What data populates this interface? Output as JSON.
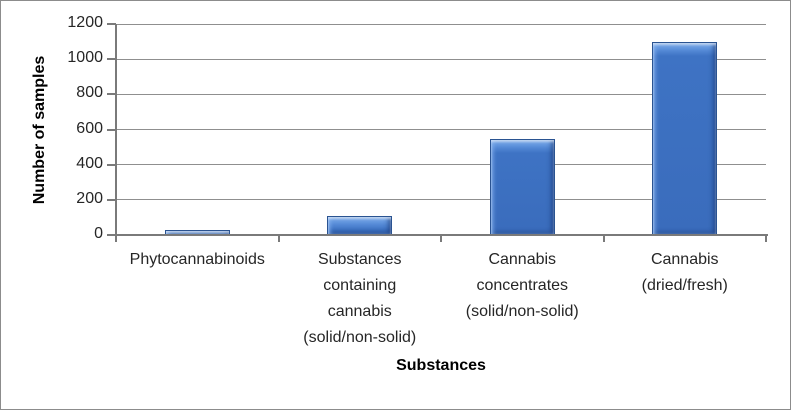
{
  "chart_data": {
    "type": "bar",
    "categories": [
      "Phytocannabinoids",
      "Substances containing cannabis (solid/non-solid)",
      "Cannabis concentrates (solid/non-solid)",
      "Cannabis (dried/fresh)"
    ],
    "category_lines": [
      [
        "Phytocannabinoids"
      ],
      [
        "Substances",
        "containing",
        "cannabis",
        "(solid/non-solid)"
      ],
      [
        "Cannabis",
        "concentrates",
        "(solid/non-solid)"
      ],
      [
        "Cannabis",
        "(dried/fresh)"
      ]
    ],
    "values": [
      30,
      110,
      545,
      1095
    ],
    "xlabel": "Substances",
    "ylabel": "Number of samples",
    "ylim": [
      0,
      1200
    ],
    "yticks": [
      0,
      200,
      400,
      600,
      800,
      1000,
      1200
    ],
    "grid": true,
    "legend_position": "none",
    "bar_color": "#3A6CBC",
    "bar_highlight_color": "#7FB0EF",
    "bar_edge_color": "#2A5391",
    "gridline_color": "#8F8F8F",
    "axis_color": "#7A7A7A",
    "tick_text_color": "#262626",
    "title_text_color": "#000000",
    "figure_border_color": "#8C8C8C",
    "background_color": "#FFFFFF"
  }
}
